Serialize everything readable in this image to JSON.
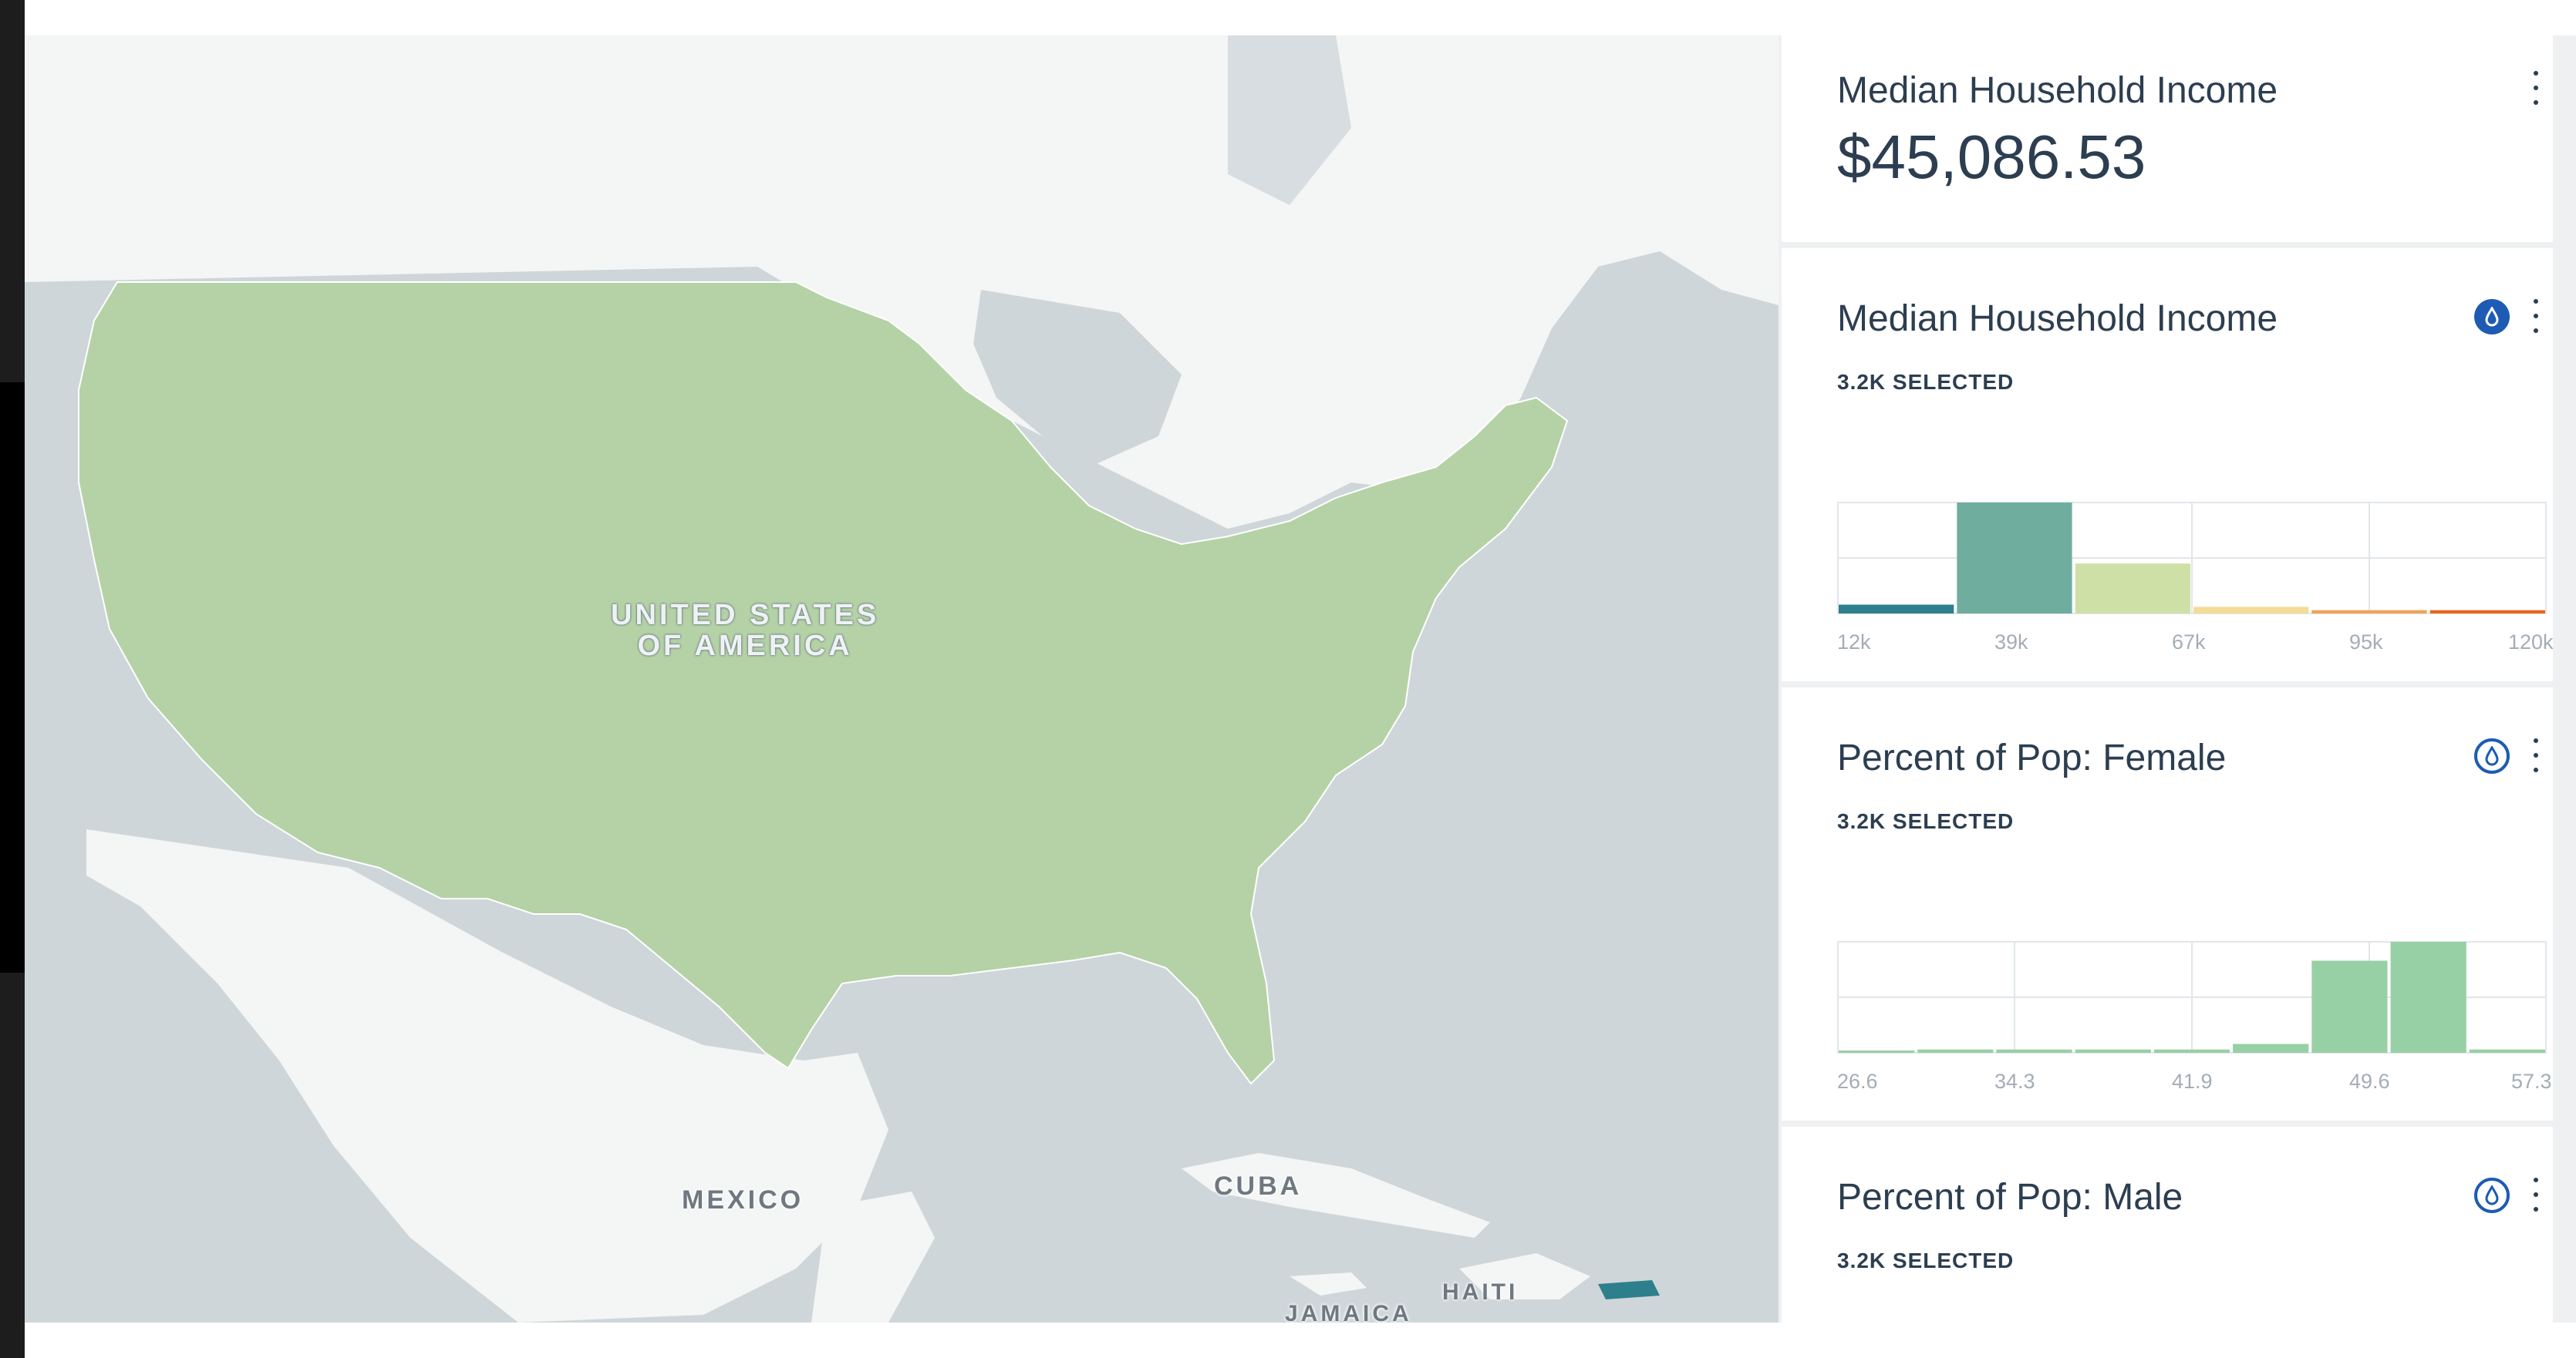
{
  "map": {
    "labels": {
      "usa_line1": "UNITED STATES",
      "usa_line2": "OF AMERICA",
      "mexico": "MEXICO",
      "cuba": "CUBA",
      "haiti": "HAITI",
      "jamaica": "JAMAICA"
    },
    "palette": [
      "#2d7f8c",
      "#76b3a6",
      "#b4d2a6",
      "#f3dc98",
      "#f0a25b",
      "#e8671c"
    ]
  },
  "widgets": {
    "formula": {
      "title": "Median Household Income",
      "value": "$45,086.53"
    },
    "income": {
      "title": "Median Household Income",
      "selected": "3.2K SELECTED",
      "ticks": [
        "12k",
        "39k",
        "67k",
        "95k",
        "120k"
      ],
      "bars": [
        0.08,
        1.0,
        0.45,
        0.06,
        0.03,
        0.03
      ],
      "colors": [
        "#2d7f8c",
        "#6fae9e",
        "#cfe0a6",
        "#f3dc98",
        "#f0a25b",
        "#e8671c"
      ]
    },
    "female": {
      "title": "Percent of Pop: Female",
      "selected": "3.2K SELECTED",
      "ticks": [
        "26.6",
        "34.3",
        "41.9",
        "49.6",
        "57.3"
      ],
      "bars": [
        0.01,
        0.03,
        0.03,
        0.03,
        0.03,
        0.08,
        0.83,
        1.0,
        0.03
      ],
      "color": "#98d0a6"
    },
    "male": {
      "title": "Percent of Pop: Male",
      "selected": "3.2K SELECTED"
    }
  },
  "icons": [
    "color-drop-icon",
    "more-vertical-icon"
  ],
  "colors": {
    "accent": "#1d5bb4",
    "text": "#2c3e50"
  }
}
